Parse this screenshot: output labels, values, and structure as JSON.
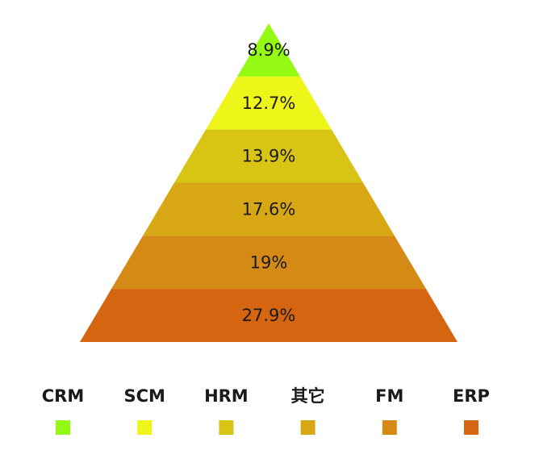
{
  "chart_data": {
    "type": "pyramid",
    "title": "",
    "categories": [
      "CRM",
      "SCM",
      "HRM",
      "其它",
      "FM",
      "ERP"
    ],
    "values": [
      8.9,
      12.7,
      13.9,
      17.6,
      19,
      27.9
    ],
    "value_labels": [
      "8.9%",
      "12.7%",
      "13.9%",
      "17.6%",
      "19%",
      "27.9%"
    ],
    "colors": [
      "#94fa14",
      "#eef519",
      "#d8c414",
      "#d7a813",
      "#d58a16",
      "#d66512"
    ],
    "order": "top-to-bottom",
    "legend_position": "bottom"
  }
}
